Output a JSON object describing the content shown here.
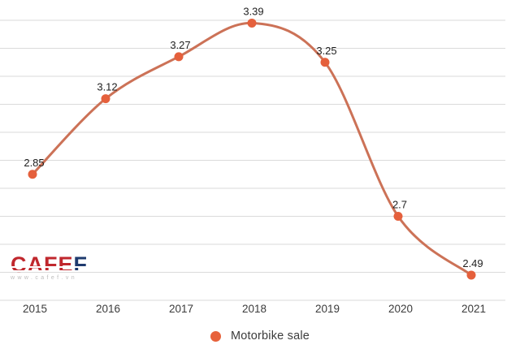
{
  "chart_data": {
    "type": "line",
    "title": "",
    "xlabel": "",
    "ylabel": "",
    "categories": [
      "2015",
      "2016",
      "2017",
      "2018",
      "2019",
      "2020",
      "2021"
    ],
    "series": [
      {
        "name": "Motorbike sale",
        "values": [
          2.85,
          3.12,
          3.27,
          3.39,
          3.25,
          2.7,
          2.49
        ]
      }
    ],
    "point_labels": [
      "2.85",
      "3.12",
      "3.27",
      "3.39",
      "3.25",
      "2.7",
      "2.49"
    ],
    "ylim": [
      2.4,
      3.4
    ],
    "grid_step": 0.1,
    "grid": "horizontal-only",
    "y_axis_labels_visible": false,
    "legend_position": "bottom-center",
    "colors": {
      "line": "#cc7257",
      "marker": "#e5603c",
      "grid": "#dadada",
      "point_label": "#1f1f1f",
      "axis_label": "#3b3b3b",
      "background": "#ffffff"
    }
  },
  "legend": {
    "label": "Motorbike sale",
    "dot_color": "#e7623b"
  },
  "watermark": {
    "brand_main": "CAFE",
    "brand_accent": "F",
    "url": "www.cafef.vn",
    "main_color": "#c0272d",
    "accent_color": "#1e3a6e"
  }
}
